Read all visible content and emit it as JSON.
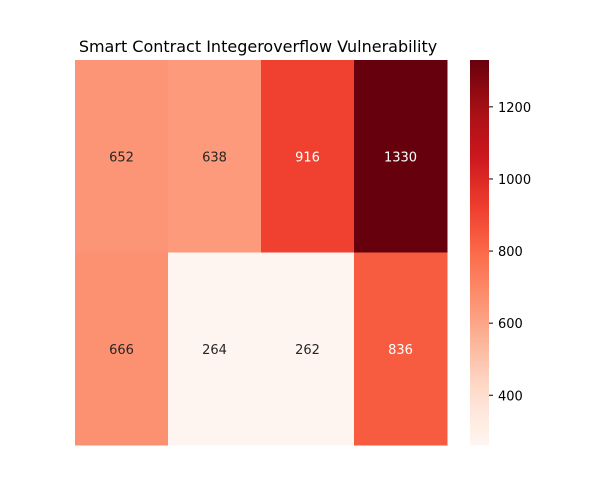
{
  "chart_data": {
    "type": "heatmap",
    "title": "Smart Contract Integeroverflow Vulnerability",
    "rows": 2,
    "cols": 4,
    "values": [
      [
        652,
        638,
        916,
        1330
      ],
      [
        666,
        264,
        262,
        836
      ]
    ],
    "xlabel": "",
    "ylabel": "",
    "colormap": "Reds",
    "vmin": 262,
    "vmax": 1330,
    "colorbar": {
      "ticks": [
        400,
        600,
        800,
        1000,
        1200
      ],
      "tick_labels": [
        "400",
        "600",
        "800",
        "1000",
        "1200"
      ]
    }
  }
}
